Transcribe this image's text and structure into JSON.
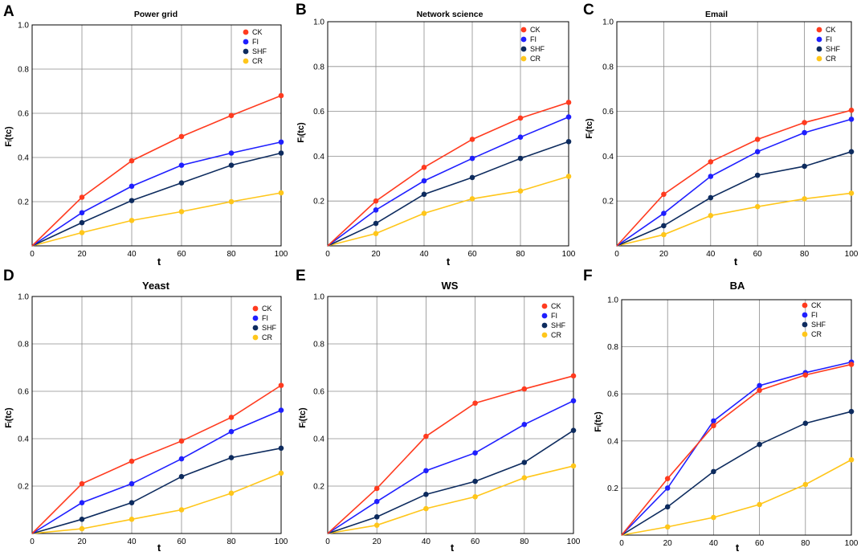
{
  "series_colors": {
    "CK": "#ff3b1f",
    "FI": "#1f1fff",
    "SHF": "#0d2b5e",
    "CR": "#ffc61a"
  },
  "chart_data": [
    {
      "panel": "A",
      "title": "Power grid",
      "type": "line",
      "x": [
        0,
        20,
        40,
        60,
        80,
        100
      ],
      "xlim": [
        0,
        100
      ],
      "ylim": [
        0,
        1.0
      ],
      "xticks": [
        "0",
        "20",
        "40",
        "60",
        "80",
        "100"
      ],
      "yticks": [
        "0.2",
        "0.4",
        "0.6",
        "0.8",
        "1.0"
      ],
      "xlabel": "t",
      "ylabel": "Fᵢ(tc)",
      "legend": "top-right",
      "grid": true,
      "series": [
        {
          "name": "CK",
          "values": [
            0,
            0.22,
            0.385,
            0.495,
            0.59,
            0.68
          ]
        },
        {
          "name": "FI",
          "values": [
            0,
            0.15,
            0.27,
            0.365,
            0.42,
            0.47
          ]
        },
        {
          "name": "SHF",
          "values": [
            0,
            0.105,
            0.205,
            0.285,
            0.365,
            0.42
          ]
        },
        {
          "name": "CR",
          "values": [
            0,
            0.06,
            0.115,
            0.155,
            0.2,
            0.24
          ]
        }
      ]
    },
    {
      "panel": "B",
      "title": "Network science",
      "type": "line",
      "x": [
        0,
        20,
        40,
        60,
        80,
        100
      ],
      "xlim": [
        0,
        100
      ],
      "ylim": [
        0,
        1.0
      ],
      "xticks": [
        "0",
        "20",
        "40",
        "60",
        "80",
        "100"
      ],
      "yticks": [
        "0.2",
        "0.4",
        "0.6",
        "0.8",
        "1.0"
      ],
      "xlabel": "t",
      "ylabel": "Fᵢ(tc)",
      "legend": "top-right",
      "grid": true,
      "series": [
        {
          "name": "CK",
          "values": [
            0,
            0.2,
            0.35,
            0.475,
            0.57,
            0.64
          ]
        },
        {
          "name": "FI",
          "values": [
            0,
            0.16,
            0.29,
            0.39,
            0.485,
            0.575
          ]
        },
        {
          "name": "SHF",
          "values": [
            0,
            0.1,
            0.23,
            0.305,
            0.39,
            0.465
          ]
        },
        {
          "name": "CR",
          "values": [
            0,
            0.055,
            0.145,
            0.21,
            0.245,
            0.31
          ]
        }
      ]
    },
    {
      "panel": "C",
      "title": "Email",
      "type": "line",
      "x": [
        0,
        20,
        40,
        60,
        80,
        100
      ],
      "xlim": [
        0,
        100
      ],
      "ylim": [
        0,
        1.0
      ],
      "xticks": [
        "0",
        "20",
        "40",
        "60",
        "80",
        "100"
      ],
      "yticks": [
        "0.2",
        "0.4",
        "0.6",
        "0.8",
        "1.0"
      ],
      "xlabel": "t",
      "ylabel": "Fᵢ(tc)",
      "legend": "top-right",
      "grid": true,
      "series": [
        {
          "name": "CK",
          "values": [
            0,
            0.23,
            0.375,
            0.475,
            0.55,
            0.605
          ]
        },
        {
          "name": "FI",
          "values": [
            0,
            0.145,
            0.31,
            0.42,
            0.505,
            0.565
          ]
        },
        {
          "name": "SHF",
          "values": [
            0,
            0.09,
            0.215,
            0.315,
            0.355,
            0.42
          ]
        },
        {
          "name": "CR",
          "values": [
            0,
            0.05,
            0.135,
            0.175,
            0.21,
            0.235
          ]
        }
      ]
    },
    {
      "panel": "D",
      "title": "Yeast",
      "type": "line",
      "x": [
        0,
        20,
        40,
        60,
        80,
        100
      ],
      "xlim": [
        0,
        100
      ],
      "ylim": [
        0,
        1.0
      ],
      "xticks": [
        "0",
        "20",
        "40",
        "60",
        "80",
        "100"
      ],
      "yticks": [
        "0.2",
        "0.4",
        "0.6",
        "0.8",
        "1.0"
      ],
      "xlabel": "t",
      "ylabel": "Fᵢ(tc)",
      "legend": "top-right",
      "grid": true,
      "series": [
        {
          "name": "CK",
          "values": [
            0,
            0.21,
            0.305,
            0.39,
            0.49,
            0.625
          ]
        },
        {
          "name": "FI",
          "values": [
            0,
            0.13,
            0.21,
            0.315,
            0.43,
            0.52
          ]
        },
        {
          "name": "SHF",
          "values": [
            0,
            0.06,
            0.13,
            0.24,
            0.32,
            0.36
          ]
        },
        {
          "name": "CR",
          "values": [
            0,
            0.02,
            0.06,
            0.1,
            0.17,
            0.255
          ]
        }
      ]
    },
    {
      "panel": "E",
      "title": "WS",
      "type": "line",
      "x": [
        0,
        20,
        40,
        60,
        80,
        100
      ],
      "xlim": [
        0,
        100
      ],
      "ylim": [
        0,
        1.0
      ],
      "xticks": [
        "0",
        "20",
        "40",
        "60",
        "80",
        "100"
      ],
      "yticks": [
        "0.2",
        "0.4",
        "0.6",
        "0.8",
        "1.0"
      ],
      "xlabel": "t",
      "ylabel": "Fᵢ(tc)",
      "legend": "top-right",
      "grid": true,
      "series": [
        {
          "name": "CK",
          "values": [
            0,
            0.19,
            0.41,
            0.55,
            0.61,
            0.665
          ]
        },
        {
          "name": "FI",
          "values": [
            0,
            0.135,
            0.265,
            0.34,
            0.46,
            0.56
          ]
        },
        {
          "name": "SHF",
          "values": [
            0,
            0.07,
            0.165,
            0.22,
            0.3,
            0.435
          ]
        },
        {
          "name": "CR",
          "values": [
            0,
            0.035,
            0.105,
            0.155,
            0.235,
            0.285
          ]
        }
      ]
    },
    {
      "panel": "F",
      "title": "BA",
      "type": "line",
      "x": [
        0,
        20,
        40,
        60,
        80,
        100
      ],
      "xlim": [
        0,
        100
      ],
      "ylim": [
        0,
        1.0
      ],
      "xticks": [
        "0",
        "20",
        "40",
        "60",
        "80",
        "100"
      ],
      "yticks": [
        "0.2",
        "0.4",
        "0.6",
        "0.8",
        "1.0"
      ],
      "xlabel": "t",
      "ylabel": "Fᵢ(tc)",
      "legend": "top-right",
      "grid": true,
      "series": [
        {
          "name": "CK",
          "values": [
            0,
            0.24,
            0.465,
            0.615,
            0.68,
            0.725
          ]
        },
        {
          "name": "FI",
          "values": [
            0,
            0.2,
            0.485,
            0.635,
            0.69,
            0.735
          ]
        },
        {
          "name": "SHF",
          "values": [
            0,
            0.12,
            0.27,
            0.385,
            0.475,
            0.525
          ]
        },
        {
          "name": "CR",
          "values": [
            0,
            0.035,
            0.075,
            0.13,
            0.215,
            0.32
          ]
        }
      ]
    }
  ]
}
